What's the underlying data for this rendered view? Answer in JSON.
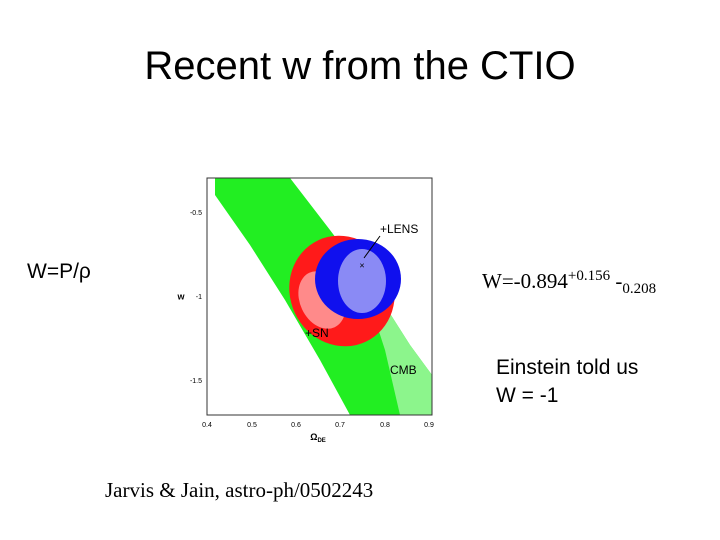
{
  "title": "Recent w from the CTIO",
  "definition": "W=P/ρ",
  "result": {
    "main": "W=-0.894",
    "upper": "+0.156",
    "lower_sign": "-",
    "lower": "0.208"
  },
  "note": [
    "Einstein told us",
    "W = -1"
  ],
  "citation": "Jarvis & Jain, astro-ph/0502243",
  "figure": {
    "xticks": [
      "0.4",
      "0.5",
      "0.6",
      "0.7",
      "0.8",
      "0.9"
    ],
    "yticks": [
      "-0.5",
      "-1",
      "-1.5"
    ],
    "xlabel": {
      "symbol": "Ω",
      "subscript": "DE"
    },
    "ylabel": "w",
    "labels": {
      "lens": "+LENS",
      "sn": "+SN",
      "cmb": "CMB"
    }
  }
}
